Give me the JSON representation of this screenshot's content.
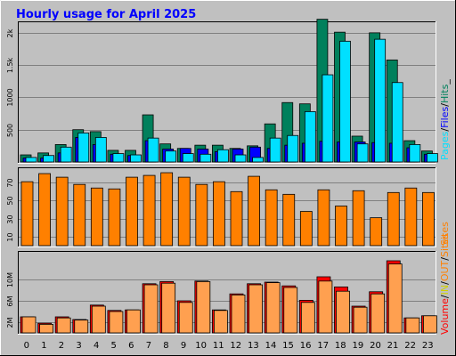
{
  "title": "Hourly usage for April 2025",
  "colors": {
    "background": "#c0c0c0",
    "title": "#0000ff",
    "hits": "#00805c",
    "files": "#0000ff",
    "pages": "#00e0ff",
    "sites": "#ff8000",
    "kbytes_in": "#ff0000",
    "kbytes_out": "#ffa050"
  },
  "chart_data": [
    {
      "type": "bar",
      "categories": [
        "0",
        "1",
        "2",
        "3",
        "4",
        "5",
        "6",
        "7",
        "8",
        "9",
        "10",
        "11",
        "12",
        "13",
        "14",
        "15",
        "16",
        "17",
        "18",
        "19",
        "20",
        "21",
        "22",
        "23"
      ],
      "ylim": [
        0,
        2150
      ],
      "yticks": [
        {
          "v": 500,
          "label": "500"
        },
        {
          "v": 1000,
          "label": "1000"
        },
        {
          "v": 1500,
          "label": "1.5k"
        },
        {
          "v": 2000,
          "label": "2k"
        }
      ],
      "legend": [
        "Pages",
        "/",
        "Files",
        "/",
        "Hits",
        "_"
      ],
      "series": [
        {
          "name": "Hits",
          "color": "#00805c",
          "values": [
            110,
            140,
            270,
            500,
            470,
            180,
            180,
            730,
            280,
            210,
            260,
            260,
            210,
            250,
            590,
            920,
            900,
            2210,
            2010,
            400,
            2000,
            1580,
            330,
            170
          ]
        },
        {
          "name": "Files",
          "color": "#0000ff",
          "values": [
            60,
            60,
            140,
            380,
            270,
            120,
            100,
            330,
            200,
            210,
            200,
            160,
            200,
            230,
            210,
            260,
            290,
            320,
            310,
            310,
            300,
            290,
            220,
            120
          ]
        },
        {
          "name": "Pages",
          "color": "#00e0ff",
          "values": [
            70,
            100,
            230,
            450,
            380,
            130,
            110,
            370,
            170,
            130,
            120,
            190,
            110,
            70,
            370,
            410,
            780,
            1350,
            1870,
            280,
            1900,
            1230,
            270,
            130
          ]
        }
      ]
    },
    {
      "type": "bar",
      "categories": [
        "0",
        "1",
        "2",
        "3",
        "4",
        "5",
        "6",
        "7",
        "8",
        "9",
        "10",
        "11",
        "12",
        "13",
        "14",
        "15",
        "16",
        "17",
        "18",
        "19",
        "20",
        "21",
        "22",
        "23"
      ],
      "ylim": [
        0,
        85
      ],
      "yticks": [
        {
          "v": 10,
          "label": "10"
        },
        {
          "v": 30,
          "label": "30"
        },
        {
          "v": 50,
          "label": "50"
        },
        {
          "v": 70,
          "label": "70"
        }
      ],
      "legend": [
        "Sites"
      ],
      "series": [
        {
          "name": "Sites",
          "color": "#ff8000",
          "values": [
            71,
            80,
            76,
            68,
            64,
            63,
            76,
            78,
            81,
            76,
            68,
            71,
            60,
            77,
            62,
            57,
            38,
            62,
            44,
            61,
            31,
            59,
            64,
            59
          ]
        }
      ]
    },
    {
      "type": "bar",
      "categories": [
        "0",
        "1",
        "2",
        "3",
        "4",
        "5",
        "6",
        "7",
        "8",
        "9",
        "10",
        "11",
        "12",
        "13",
        "14",
        "15",
        "16",
        "17",
        "18",
        "19",
        "20",
        "21",
        "22",
        "23"
      ],
      "ylim": [
        0,
        15
      ],
      "yticks": [
        {
          "v": 2,
          "label": "2M"
        },
        {
          "v": 6,
          "label": "6M"
        },
        {
          "v": 10,
          "label": "10M"
        }
      ],
      "legend": [
        "Volume",
        "/",
        "IN",
        "/",
        "OUT",
        "/",
        "Sites"
      ],
      "series": [
        {
          "name": "IN",
          "color": "#ff0000",
          "values": [
            3.0,
            1.8,
            3.0,
            2.5,
            5.2,
            4.2,
            4.3,
            9.2,
            9.6,
            6.0,
            9.7,
            4.3,
            7.3,
            9.2,
            9.5,
            8.8,
            6.1,
            10.5,
            8.6,
            5.0,
            7.7,
            13.5,
            2.8,
            3.2
          ]
        },
        {
          "name": "OUT",
          "color": "#ffa050",
          "values": [
            3.0,
            1.6,
            2.8,
            2.4,
            5.0,
            4.0,
            4.3,
            9.0,
            9.3,
            5.7,
            9.6,
            4.2,
            7.1,
            9.0,
            9.4,
            8.5,
            5.7,
            9.7,
            7.8,
            4.8,
            7.3,
            12.9,
            2.8,
            3.2
          ]
        }
      ]
    }
  ]
}
